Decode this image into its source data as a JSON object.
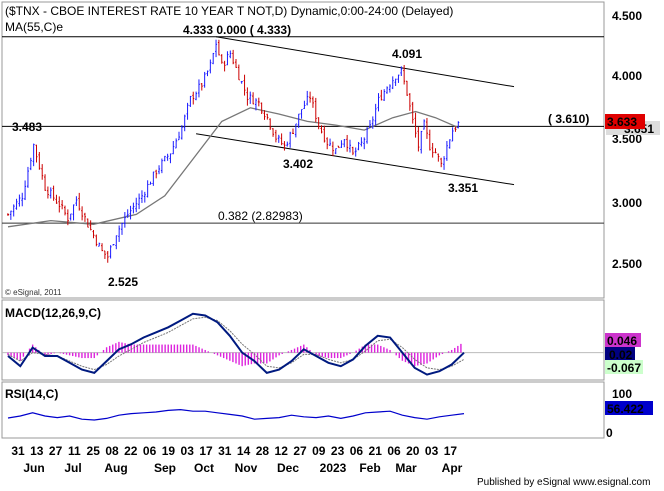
{
  "header": {
    "title": "($TNX - CBOE INTEREST RATE 10 YEAR T NOT,D) Dynamic,0:00-24:00 (Delayed)",
    "ma_label": "MA(55,C)e"
  },
  "panels": {
    "price": {
      "label": "",
      "copyright": "© eSignal, 2011"
    },
    "macd": {
      "label": "MACD(12,26,9,C)"
    },
    "rsi": {
      "label": "RSI(14,C)"
    }
  },
  "footer": {
    "text": "Published by eSignal  www.esignal.com"
  },
  "colors": {
    "candle_up": "#1b1bff",
    "candle_down": "#cc0000",
    "ma_line": "#777777",
    "channel_line": "#000000",
    "fib_line": "#333333",
    "fib_label": "#800000",
    "macd_line": "#001a80",
    "signal_line": "#777777",
    "hist": "#dd22dd",
    "rsi_line": "#0000cc",
    "last_price_bg": "#e00000",
    "macd_badge_bg": "#cc33cc",
    "macd_line_badge_bg": "#000080",
    "rsi_badge_bg": "#0000cc",
    "signal_badge_bg": "#ccffcc"
  },
  "chart_data": [
    {
      "type": "candlestick",
      "title": "($TNX - CBOE INTEREST RATE 10 YEAR T NOT,D)",
      "ylim": [
        2.3,
        4.6
      ],
      "y_ticks": [
        "4.500",
        "4.000",
        "3.500",
        "3.000",
        "2.500"
      ],
      "x_tick_labels": [
        "31",
        "13",
        "27",
        "11",
        "25",
        "08",
        "22",
        "06",
        "19",
        "03",
        "17",
        "31",
        "14",
        "28",
        "12",
        "27",
        "09",
        "23",
        "06",
        "21",
        "06",
        "20",
        "03",
        "17"
      ],
      "x_month_labels": [
        "Jun",
        "Jul",
        "Aug",
        "Sep",
        "Oct",
        "Nov",
        "Dec",
        "2023",
        "Feb",
        "Mar",
        "Apr"
      ],
      "close_path": [
        {
          "x": 0,
          "y": 2.9
        },
        {
          "x": 5,
          "y": 3.05
        },
        {
          "x": 9,
          "y": 3.46
        },
        {
          "x": 13,
          "y": 3.12
        },
        {
          "x": 18,
          "y": 2.98
        },
        {
          "x": 21,
          "y": 2.87
        },
        {
          "x": 24,
          "y": 3.02
        },
        {
          "x": 28,
          "y": 2.82
        },
        {
          "x": 33,
          "y": 2.6
        },
        {
          "x": 35,
          "y": 2.56
        },
        {
          "x": 38,
          "y": 2.75
        },
        {
          "x": 42,
          "y": 2.9
        },
        {
          "x": 47,
          "y": 3.05
        },
        {
          "x": 52,
          "y": 3.25
        },
        {
          "x": 57,
          "y": 3.4
        },
        {
          "x": 61,
          "y": 3.6
        },
        {
          "x": 64,
          "y": 3.83
        },
        {
          "x": 68,
          "y": 3.95
        },
        {
          "x": 71,
          "y": 4.1
        },
        {
          "x": 73,
          "y": 4.28
        },
        {
          "x": 75,
          "y": 4.1
        },
        {
          "x": 78,
          "y": 4.2
        },
        {
          "x": 81,
          "y": 4.02
        },
        {
          "x": 84,
          "y": 3.85
        },
        {
          "x": 88,
          "y": 3.8
        },
        {
          "x": 91,
          "y": 3.68
        },
        {
          "x": 94,
          "y": 3.52
        },
        {
          "x": 97,
          "y": 3.45
        },
        {
          "x": 100,
          "y": 3.58
        },
        {
          "x": 103,
          "y": 3.75
        },
        {
          "x": 106,
          "y": 3.85
        },
        {
          "x": 109,
          "y": 3.62
        },
        {
          "x": 112,
          "y": 3.48
        },
        {
          "x": 115,
          "y": 3.42
        },
        {
          "x": 118,
          "y": 3.52
        },
        {
          "x": 121,
          "y": 3.38
        },
        {
          "x": 124,
          "y": 3.47
        },
        {
          "x": 127,
          "y": 3.6
        },
        {
          "x": 130,
          "y": 3.82
        },
        {
          "x": 133,
          "y": 3.93
        },
        {
          "x": 136,
          "y": 4.02
        },
        {
          "x": 138,
          "y": 4.05
        },
        {
          "x": 140,
          "y": 3.88
        },
        {
          "x": 142,
          "y": 3.65
        },
        {
          "x": 144,
          "y": 3.45
        },
        {
          "x": 146,
          "y": 3.62
        },
        {
          "x": 148,
          "y": 3.45
        },
        {
          "x": 150,
          "y": 3.4
        },
        {
          "x": 152,
          "y": 3.3
        },
        {
          "x": 154,
          "y": 3.45
        },
        {
          "x": 156,
          "y": 3.58
        },
        {
          "x": 158,
          "y": 3.63
        }
      ],
      "ma_path": [
        {
          "x": 0,
          "y": 2.8
        },
        {
          "x": 15,
          "y": 2.85
        },
        {
          "x": 30,
          "y": 2.82
        },
        {
          "x": 45,
          "y": 2.9
        },
        {
          "x": 55,
          "y": 3.05
        },
        {
          "x": 65,
          "y": 3.35
        },
        {
          "x": 75,
          "y": 3.65
        },
        {
          "x": 85,
          "y": 3.76
        },
        {
          "x": 95,
          "y": 3.71
        },
        {
          "x": 105,
          "y": 3.65
        },
        {
          "x": 115,
          "y": 3.62
        },
        {
          "x": 125,
          "y": 3.58
        },
        {
          "x": 135,
          "y": 3.68
        },
        {
          "x": 143,
          "y": 3.73
        },
        {
          "x": 150,
          "y": 3.68
        },
        {
          "x": 158,
          "y": 3.6
        }
      ],
      "horizontal_lines": [
        {
          "label": "4.333",
          "value": 4.333
        },
        {
          "label": "3.483",
          "value": 3.61
        },
        {
          "label": "0.382 (2.82983)",
          "value": 2.83
        }
      ],
      "channel_upper": [
        {
          "x": 73,
          "y": 4.333
        },
        {
          "x": 160,
          "y": 3.93
        }
      ],
      "channel_lower": [
        {
          "x": 66,
          "y": 3.55
        },
        {
          "x": 160,
          "y": 3.14
        }
      ],
      "annotations": [
        {
          "text": "4.333 0.000 ( 4.333)"
        },
        {
          "text": "4.091"
        },
        {
          "text": "3.483"
        },
        {
          "text": "( 3.610)"
        },
        {
          "text": "3.402"
        },
        {
          "text": "3.351"
        },
        {
          "text": "2.525"
        },
        {
          "text": "0.382 (2.82983)"
        }
      ],
      "last_price": "3.633",
      "last_price_behind": "3.651"
    },
    {
      "type": "line",
      "title": "MACD(12,26,9,C)",
      "series": [
        {
          "name": "MACD",
          "values": [
            -0.02,
            -0.08,
            0.03,
            -0.02,
            -0.02,
            -0.06,
            -0.1,
            -0.12,
            -0.05,
            0.02,
            0.05,
            0.09,
            0.12,
            0.15,
            0.19,
            0.23,
            0.22,
            0.18,
            0.1,
            0.0,
            -0.05,
            -0.12,
            -0.1,
            -0.05,
            0.02,
            -0.02,
            -0.06,
            -0.08,
            -0.04,
            0.04,
            0.1,
            0.09,
            0.0,
            -0.09,
            -0.13,
            -0.11,
            -0.07,
            0.0
          ]
        },
        {
          "name": "Signal",
          "values": [
            -0.01,
            -0.05,
            0.0,
            -0.01,
            -0.02,
            -0.05,
            -0.08,
            -0.1,
            -0.07,
            -0.02,
            0.02,
            0.06,
            0.09,
            0.12,
            0.16,
            0.2,
            0.21,
            0.19,
            0.13,
            0.05,
            -0.01,
            -0.08,
            -0.09,
            -0.06,
            -0.01,
            -0.01,
            -0.04,
            -0.06,
            -0.04,
            0.01,
            0.07,
            0.08,
            0.03,
            -0.04,
            -0.09,
            -0.1,
            -0.08,
            -0.04
          ]
        }
      ],
      "ylim": [
        -0.15,
        0.3
      ],
      "badges": [
        "0.046",
        "0.02",
        "-0.067"
      ]
    },
    {
      "type": "line",
      "title": "RSI(14,C)",
      "y_ticks": [
        "100",
        "50",
        "0"
      ],
      "series": [
        {
          "name": "RSI",
          "values": [
            45,
            50,
            58,
            50,
            46,
            50,
            42,
            40,
            44,
            52,
            56,
            58,
            60,
            64,
            66,
            62,
            62,
            58,
            54,
            50,
            42,
            44,
            46,
            52,
            48,
            46,
            50,
            44,
            50,
            58,
            60,
            62,
            52,
            46,
            42,
            48,
            52,
            56
          ]
        }
      ],
      "ylim": [
        0,
        100
      ],
      "badge": "56.422"
    }
  ]
}
